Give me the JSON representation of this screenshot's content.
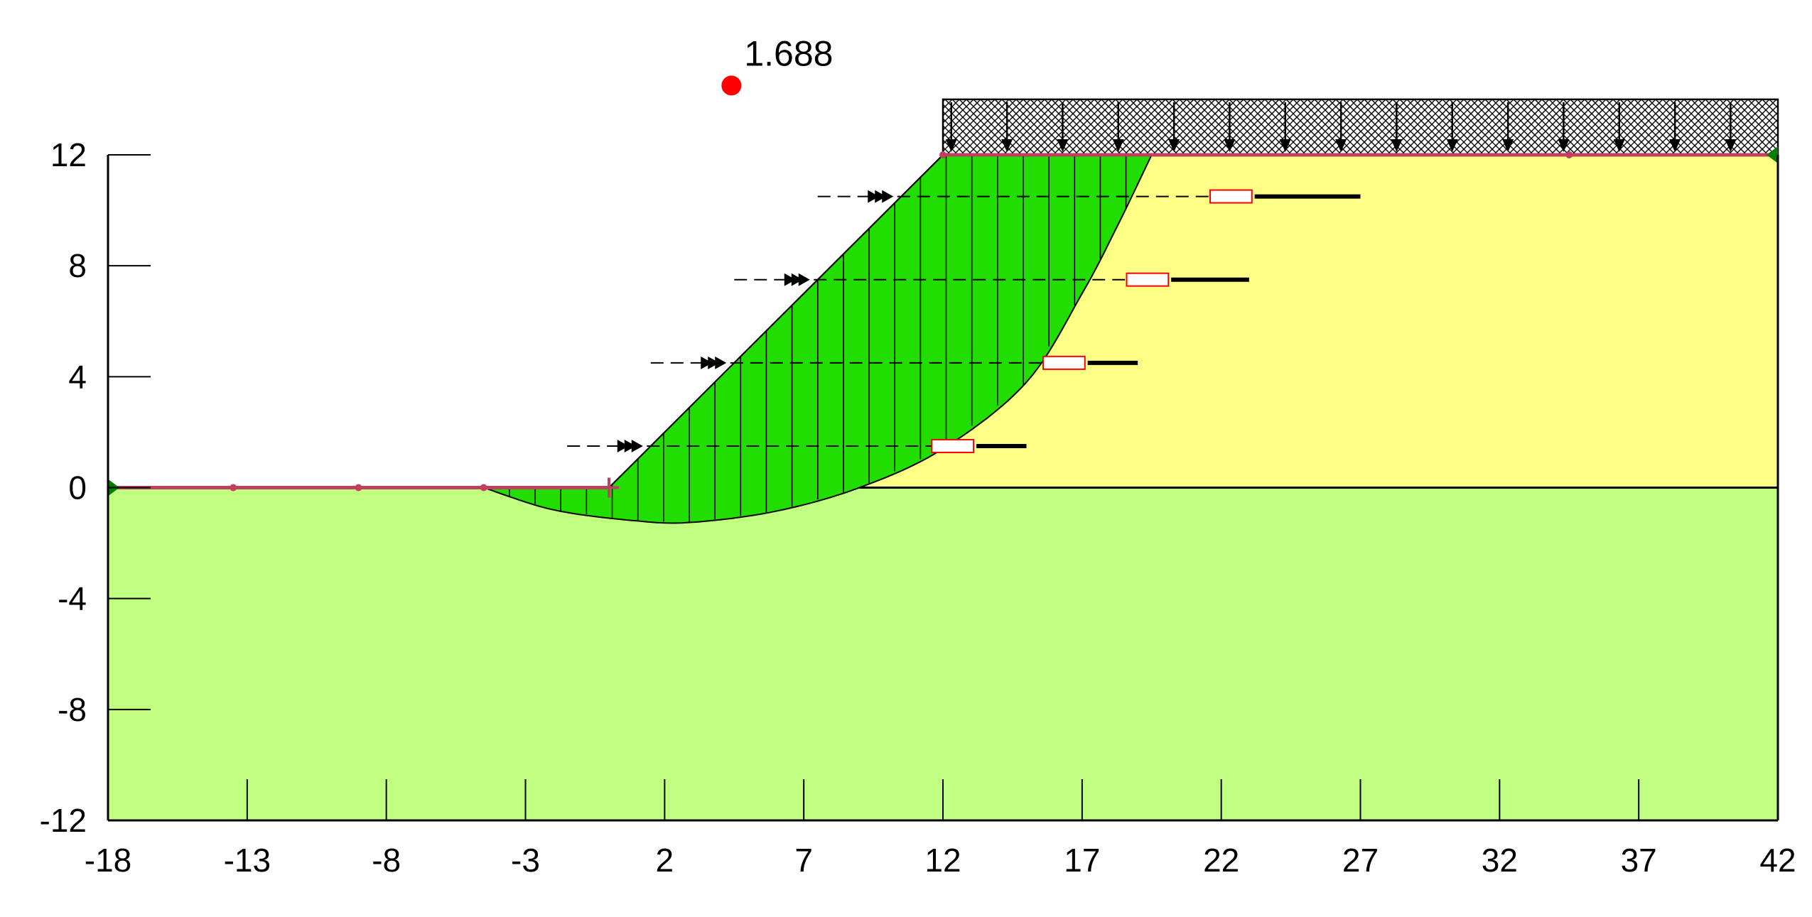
{
  "title": "",
  "factor_of_safety": {
    "label": "1.688",
    "center": [
      4.4,
      14.5
    ]
  },
  "axes": {
    "x": {
      "min": -18,
      "max": 42,
      "ticks": [
        -18,
        -13,
        -8,
        -3,
        2,
        7,
        12,
        17,
        22,
        27,
        32,
        37,
        42
      ]
    },
    "y": {
      "min": -12,
      "max": 12,
      "ticks": [
        -12,
        -8,
        -4,
        0,
        4,
        8,
        12
      ]
    }
  },
  "colors": {
    "upper_soil": "#FFFF88",
    "lower_soil": "#C0FF80",
    "sliding_mass": "#22DD00",
    "slip_center": "#FF0000",
    "ground_line": "#C04060",
    "load": "#000000",
    "boundary_marker": "#008000",
    "anchor_bond": "#FF0000"
  },
  "geometry": {
    "ground_profile": [
      [
        -18,
        0
      ],
      [
        0,
        0
      ],
      [
        12,
        12
      ],
      [
        42,
        12
      ]
    ],
    "layer_boundary": [
      [
        9,
        0
      ],
      [
        42,
        0
      ]
    ],
    "slip_surface": [
      [
        -4.5,
        0
      ],
      [
        -2,
        -0.8
      ],
      [
        1,
        -1.2
      ],
      [
        3,
        -1.25
      ],
      [
        6,
        -0.85
      ],
      [
        9,
        0
      ],
      [
        12,
        1.4
      ],
      [
        15,
        3.8
      ],
      [
        17,
        7
      ],
      [
        18.3,
        9.5
      ],
      [
        19.5,
        12
      ]
    ],
    "slice_count": 26
  },
  "surcharge_load": {
    "x_start": 12,
    "x_end": 42,
    "top": 14
  },
  "anchors": [
    {
      "y": 1.5,
      "head_x": 1.5,
      "bond_start": 12,
      "bond_end": 15
    },
    {
      "y": 4.5,
      "head_x": 4.5,
      "bond_start": 16,
      "bond_end": 19
    },
    {
      "y": 7.5,
      "head_x": 7.5,
      "bond_start": 19,
      "bond_end": 23
    },
    {
      "y": 10.5,
      "head_x": 10.5,
      "bond_start": 22,
      "bond_end": 27
    }
  ]
}
